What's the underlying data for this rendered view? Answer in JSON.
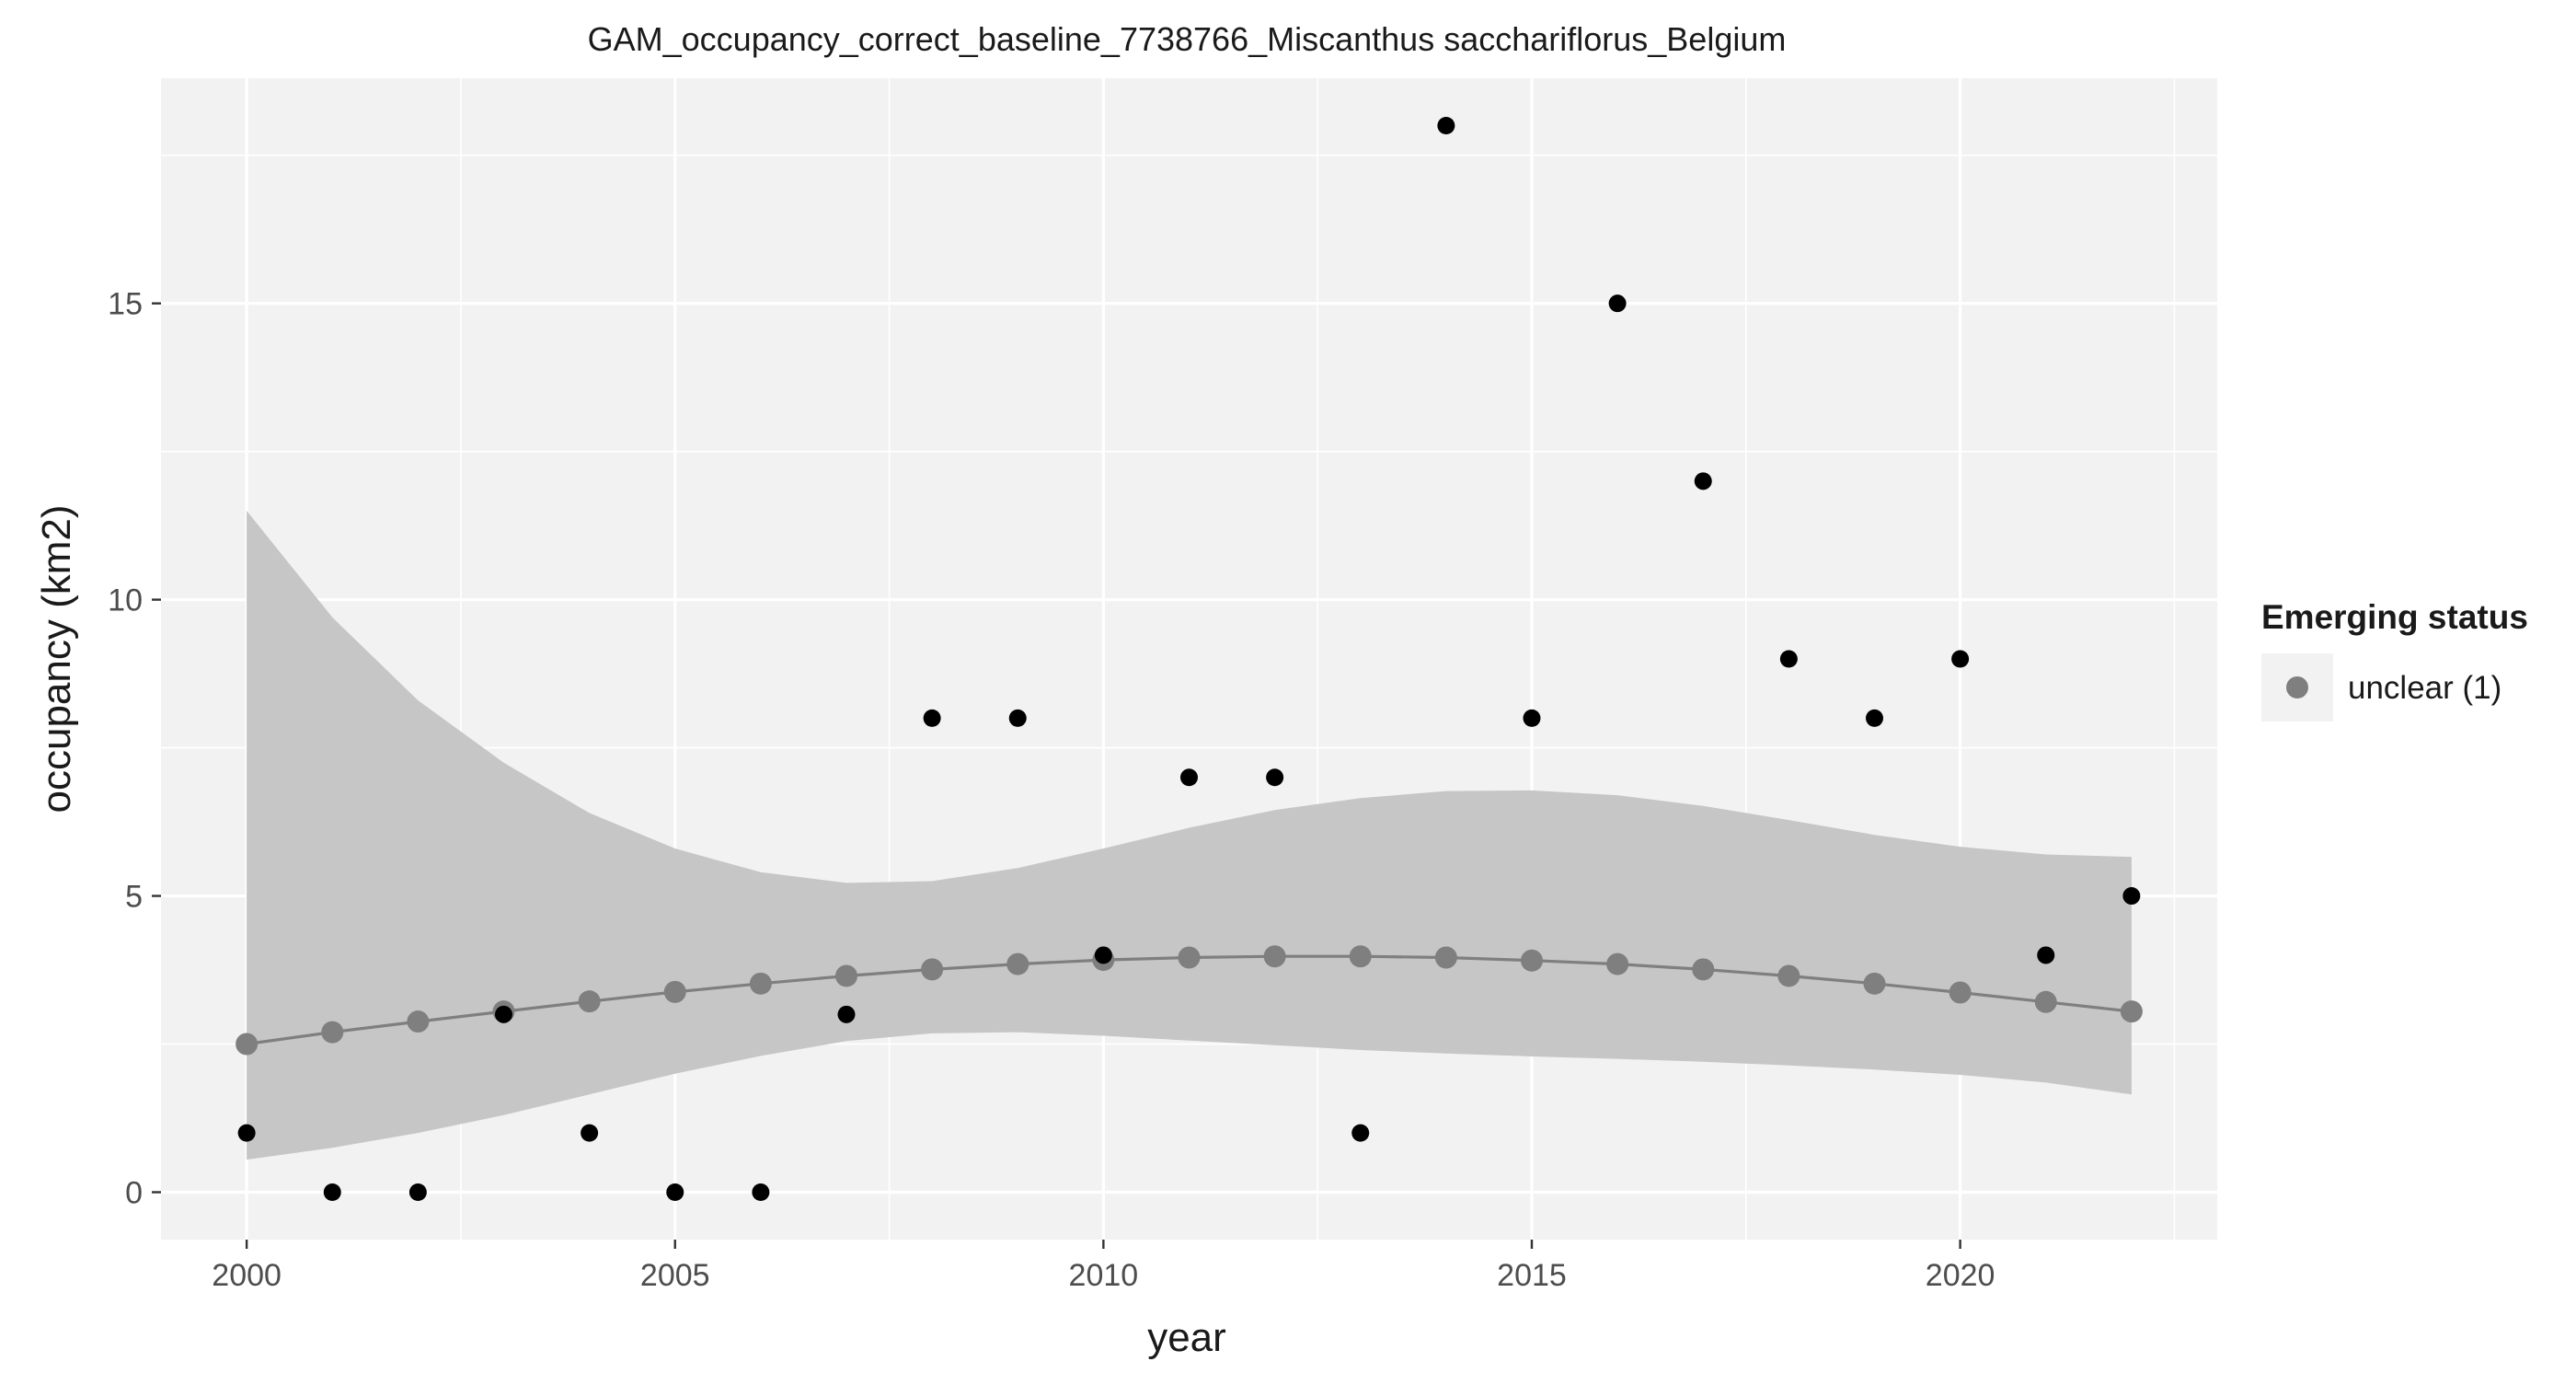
{
  "chart_data": {
    "type": "scatter",
    "title": "GAM_occupancy_correct_baseline_7738766_Miscanthus sacchariflorus_Belgium",
    "xlabel": "year",
    "ylabel": "occupancy (km2)",
    "xlim": [
      1999,
      2023
    ],
    "ylim": [
      -0.8,
      18.8
    ],
    "x_ticks": [
      2000,
      2005,
      2010,
      2015,
      2020
    ],
    "x_tick_labels": [
      "2000",
      "2005",
      "2010",
      "2015",
      "2020"
    ],
    "y_ticks": [
      0,
      5,
      10,
      15
    ],
    "y_tick_labels": [
      "0",
      "5",
      "10",
      "15"
    ],
    "grid": true,
    "legend": {
      "title": "Emerging status",
      "position": "right",
      "entries": [
        {
          "label": "unclear (1)",
          "color": "#7f7f7f"
        }
      ]
    },
    "observed": {
      "color": "#000000",
      "x": [
        2000,
        2001,
        2002,
        2003,
        2004,
        2005,
        2006,
        2007,
        2008,
        2009,
        2010,
        2011,
        2012,
        2013,
        2014,
        2015,
        2016,
        2017,
        2018,
        2019,
        2020,
        2021,
        2022
      ],
      "y": [
        1,
        0,
        0,
        3,
        1,
        0,
        0,
        3,
        8,
        8,
        4,
        7,
        7,
        1,
        18,
        8,
        15,
        12,
        9,
        8,
        9,
        4,
        5
      ]
    },
    "fit": {
      "color": "#7f7f7f",
      "x": [
        2000,
        2001,
        2002,
        2003,
        2004,
        2005,
        2006,
        2007,
        2008,
        2009,
        2010,
        2011,
        2012,
        2013,
        2014,
        2015,
        2016,
        2017,
        2018,
        2019,
        2020,
        2021,
        2022
      ],
      "y": [
        2.5,
        2.7,
        2.88,
        3.05,
        3.22,
        3.38,
        3.52,
        3.65,
        3.76,
        3.85,
        3.92,
        3.96,
        3.98,
        3.98,
        3.96,
        3.91,
        3.85,
        3.76,
        3.65,
        3.52,
        3.37,
        3.21,
        3.05
      ],
      "lower": [
        0.55,
        0.75,
        1.0,
        1.3,
        1.65,
        2.0,
        2.3,
        2.55,
        2.68,
        2.7,
        2.64,
        2.56,
        2.48,
        2.4,
        2.34,
        2.29,
        2.25,
        2.2,
        2.14,
        2.07,
        1.98,
        1.85,
        1.65
      ],
      "upper": [
        11.5,
        9.7,
        8.3,
        7.25,
        6.4,
        5.8,
        5.4,
        5.22,
        5.25,
        5.47,
        5.8,
        6.15,
        6.45,
        6.65,
        6.77,
        6.78,
        6.7,
        6.52,
        6.28,
        6.03,
        5.83,
        5.7,
        5.66
      ],
      "band_color": "#c6c6c6"
    },
    "panel_background": "#f2f2f2"
  }
}
